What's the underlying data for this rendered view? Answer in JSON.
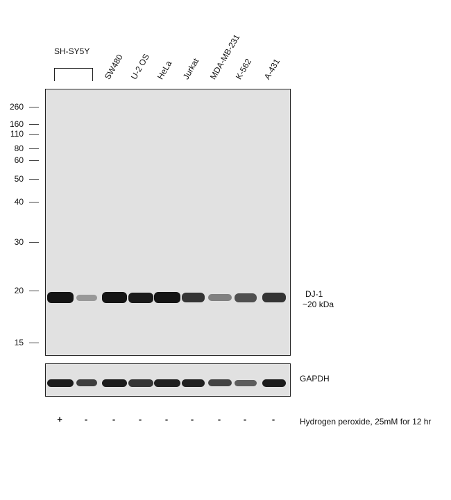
{
  "group_label": "SH-SY5Y",
  "lanes": [
    {
      "label": ""
    },
    {
      "label": ""
    },
    {
      "label": "SW480"
    },
    {
      "label": "U-2 OS"
    },
    {
      "label": "HeLa"
    },
    {
      "label": "Jurkat"
    },
    {
      "label": "MDA-MB-231"
    },
    {
      "label": "K-562"
    },
    {
      "label": "A-431"
    }
  ],
  "markers": [
    "260",
    "160",
    "110",
    "80",
    "60",
    "50",
    "40",
    "30",
    "20",
    "15"
  ],
  "target_band": {
    "name": "DJ-1",
    "size": "~20 kDa"
  },
  "loading_control": "GAPDH",
  "treatment": {
    "signs": [
      "+",
      "-",
      "-",
      "-",
      "-",
      "-",
      "-",
      "-",
      "-"
    ],
    "caption": "Hydrogen peroxide, 25mM for 12 hr"
  },
  "band_intensity": {
    "dj1": [
      0.95,
      0.22,
      0.95,
      0.92,
      0.95,
      0.78,
      0.35,
      0.62,
      0.78
    ],
    "gapdh": [
      0.9,
      0.72,
      0.9,
      0.78,
      0.88,
      0.88,
      0.7,
      0.55,
      0.9
    ]
  },
  "colors": {
    "panel_bg": "#e1e1e1",
    "band": "#0b0b0b",
    "border": "#222222"
  }
}
